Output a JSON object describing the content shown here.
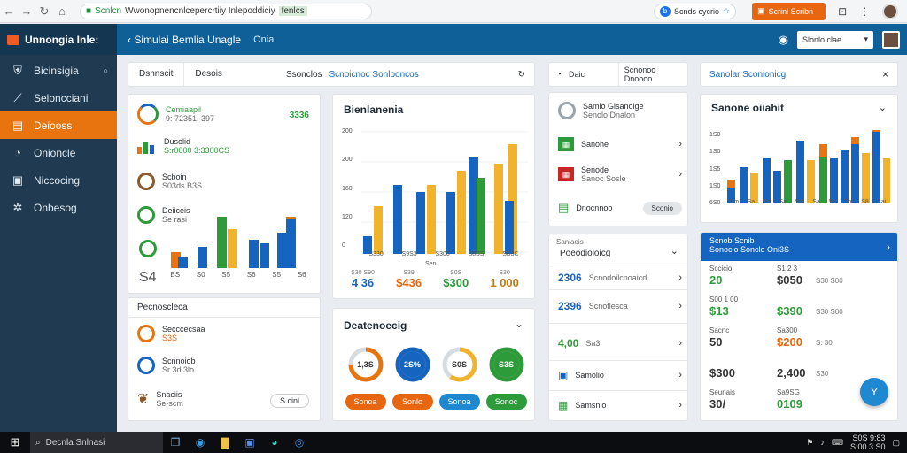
{
  "browser": {
    "url_prefix": "Scnlcn",
    "url_text": "Wwonopnencnlcepercrtiiy Inlepoddiciy",
    "url_highlight": "fenlcs",
    "ext_text": "Scnds cycrio",
    "orange_btn": "Scrinl Scribn"
  },
  "app": {
    "brand": "Unnongia Inle:",
    "title": "Simulai Bemlia Unagle",
    "tab": "Onia",
    "search_value": "Slonlo clae"
  },
  "sidebar": {
    "items": [
      {
        "label": "Bicinsigia",
        "icon": "shield-icon"
      },
      {
        "label": "Seloncciani",
        "icon": "chart-icon"
      },
      {
        "label": "Deiooss",
        "icon": "doc-icon"
      },
      {
        "label": "Onioncle",
        "icon": "person-icon"
      },
      {
        "label": "Niccocing",
        "icon": "box-icon"
      },
      {
        "label": "Onbesog",
        "icon": "gear-icon"
      }
    ]
  },
  "panel1": {
    "tabs": [
      "Dsnnscit",
      "Desois"
    ],
    "right_text": "Ssonclos",
    "right_link": "Scnoicnoc Sonlooncos",
    "items": [
      {
        "title": "Cemiaapil",
        "sub": "9: 72351. 397",
        "value": "3336"
      },
      {
        "title": "Dusolid",
        "sub": "S:r0000 3:3300CS",
        "value": ""
      },
      {
        "title": "Scboin",
        "sub": "S03ds B3S",
        "value": ""
      },
      {
        "title": "Deiiceis",
        "sub": "Se rasi",
        "value": ""
      },
      {
        "title": "",
        "sub": "",
        "value": ""
      }
    ],
    "big_value": "S4",
    "x_labels": [
      "BS",
      "S0",
      "S5",
      "S6",
      "S5",
      "S6"
    ],
    "section": "Pecnoscleca",
    "list": [
      {
        "title": "Secccecsaa",
        "sub": "S3S"
      },
      {
        "title": "Scnnoiob",
        "sub": "Sr 3d 3lo"
      },
      {
        "title": "Snaciis",
        "sub": "Se-scm"
      }
    ],
    "list_btn": "S cinl"
  },
  "panel2": {
    "title": "Bienlanenia",
    "y_ticks": [
      "200",
      "200",
      "160",
      "120",
      "0"
    ],
    "x_labels": [
      "S330",
      "S9S3",
      "S300",
      "S8SS",
      "SB3C"
    ],
    "x_axis": "Sen",
    "stats": [
      {
        "value": "4 36",
        "sub": "S30 S90"
      },
      {
        "value": "$436",
        "sub": "S39"
      },
      {
        "value": "$300",
        "sub": "S0S"
      },
      {
        "value": "1 000",
        "sub": "S30"
      }
    ]
  },
  "panel3": {
    "title": "Deatenoecig",
    "donuts": [
      "1,3S",
      "2S%",
      "S0S",
      "S3S"
    ],
    "pills": [
      "Sonoa",
      "Sonlo",
      "Sonoa",
      "Sonoc"
    ]
  },
  "panel4": {
    "tabs": [
      "Daic Sanoss",
      "Scnonoc Dnoooo"
    ],
    "items": [
      {
        "title": "Samio Gisanoige",
        "sub": "Senolo Dnalon"
      },
      {
        "title": "Sanohe",
        "sub": ""
      },
      {
        "title": "Senode",
        "sub": "Sanoc Sosle"
      },
      {
        "title": "Dnocnnoo",
        "sub": ""
      }
    ],
    "btn": "Sconio",
    "section_small": "Saniaeis",
    "section_title": "Poeodioloicg",
    "rows": [
      {
        "value": "2306",
        "sub": "Scnodoilcnoaicd"
      },
      {
        "value": "2396",
        "sub": "Scnotlesca"
      },
      {
        "value": "4,00",
        "sub": "Sa3"
      },
      {
        "value": "",
        "sub": "Samolio"
      },
      {
        "value": "",
        "sub": "Samsnlo"
      }
    ]
  },
  "panel5": {
    "title": "Sanone oiiahit",
    "y_ticks": [
      "1S0",
      "1S0",
      "1S5",
      "1S0",
      "6S0"
    ],
    "x_labels": [
      "Sm",
      "Sa",
      "Sb",
      "Sa",
      "Sm",
      "Sa",
      "Ss",
      "Sbi",
      "S8",
      "Sai"
    ]
  },
  "panel6": {
    "head1": "Scnob Scnib",
    "head2": "Sonoclo Sonclo Oni3S",
    "rows": [
      {
        "label": "Sccicio",
        "value_a": "20",
        "label_b": "S1 2 3",
        "value_b": "$050",
        "sub_b": "S30 S00"
      },
      {
        "label": "S00 1 00",
        "value_a": "$13",
        "label_b": "",
        "value_b": "$390",
        "sub_b": "S30 S00"
      },
      {
        "label": "Sacnc",
        "value_a": "50",
        "label_b": "Sa300",
        "value_b": "$200",
        "sub_b": "S: 30"
      },
      {
        "label": "",
        "value_a": "$300",
        "label_b": "",
        "value_b": "2,400",
        "sub_b": "S30"
      },
      {
        "label": "Seunais",
        "value_a": "30/",
        "label_b": "Sa9SG",
        "value_b": "0109",
        "sub_b": ""
      }
    ],
    "fab": "Y"
  },
  "taskbar": {
    "search": "Decnla Snlnasi",
    "clock": "S0S 9:83",
    "date": "S:00 3 S0"
  },
  "colors": {
    "blue": "#1565c0",
    "orange": "#e8740f",
    "yellow": "#f0b32b",
    "green": "#2e9b3b",
    "navy": "#1f3a51",
    "header": "#0f5f99"
  }
}
